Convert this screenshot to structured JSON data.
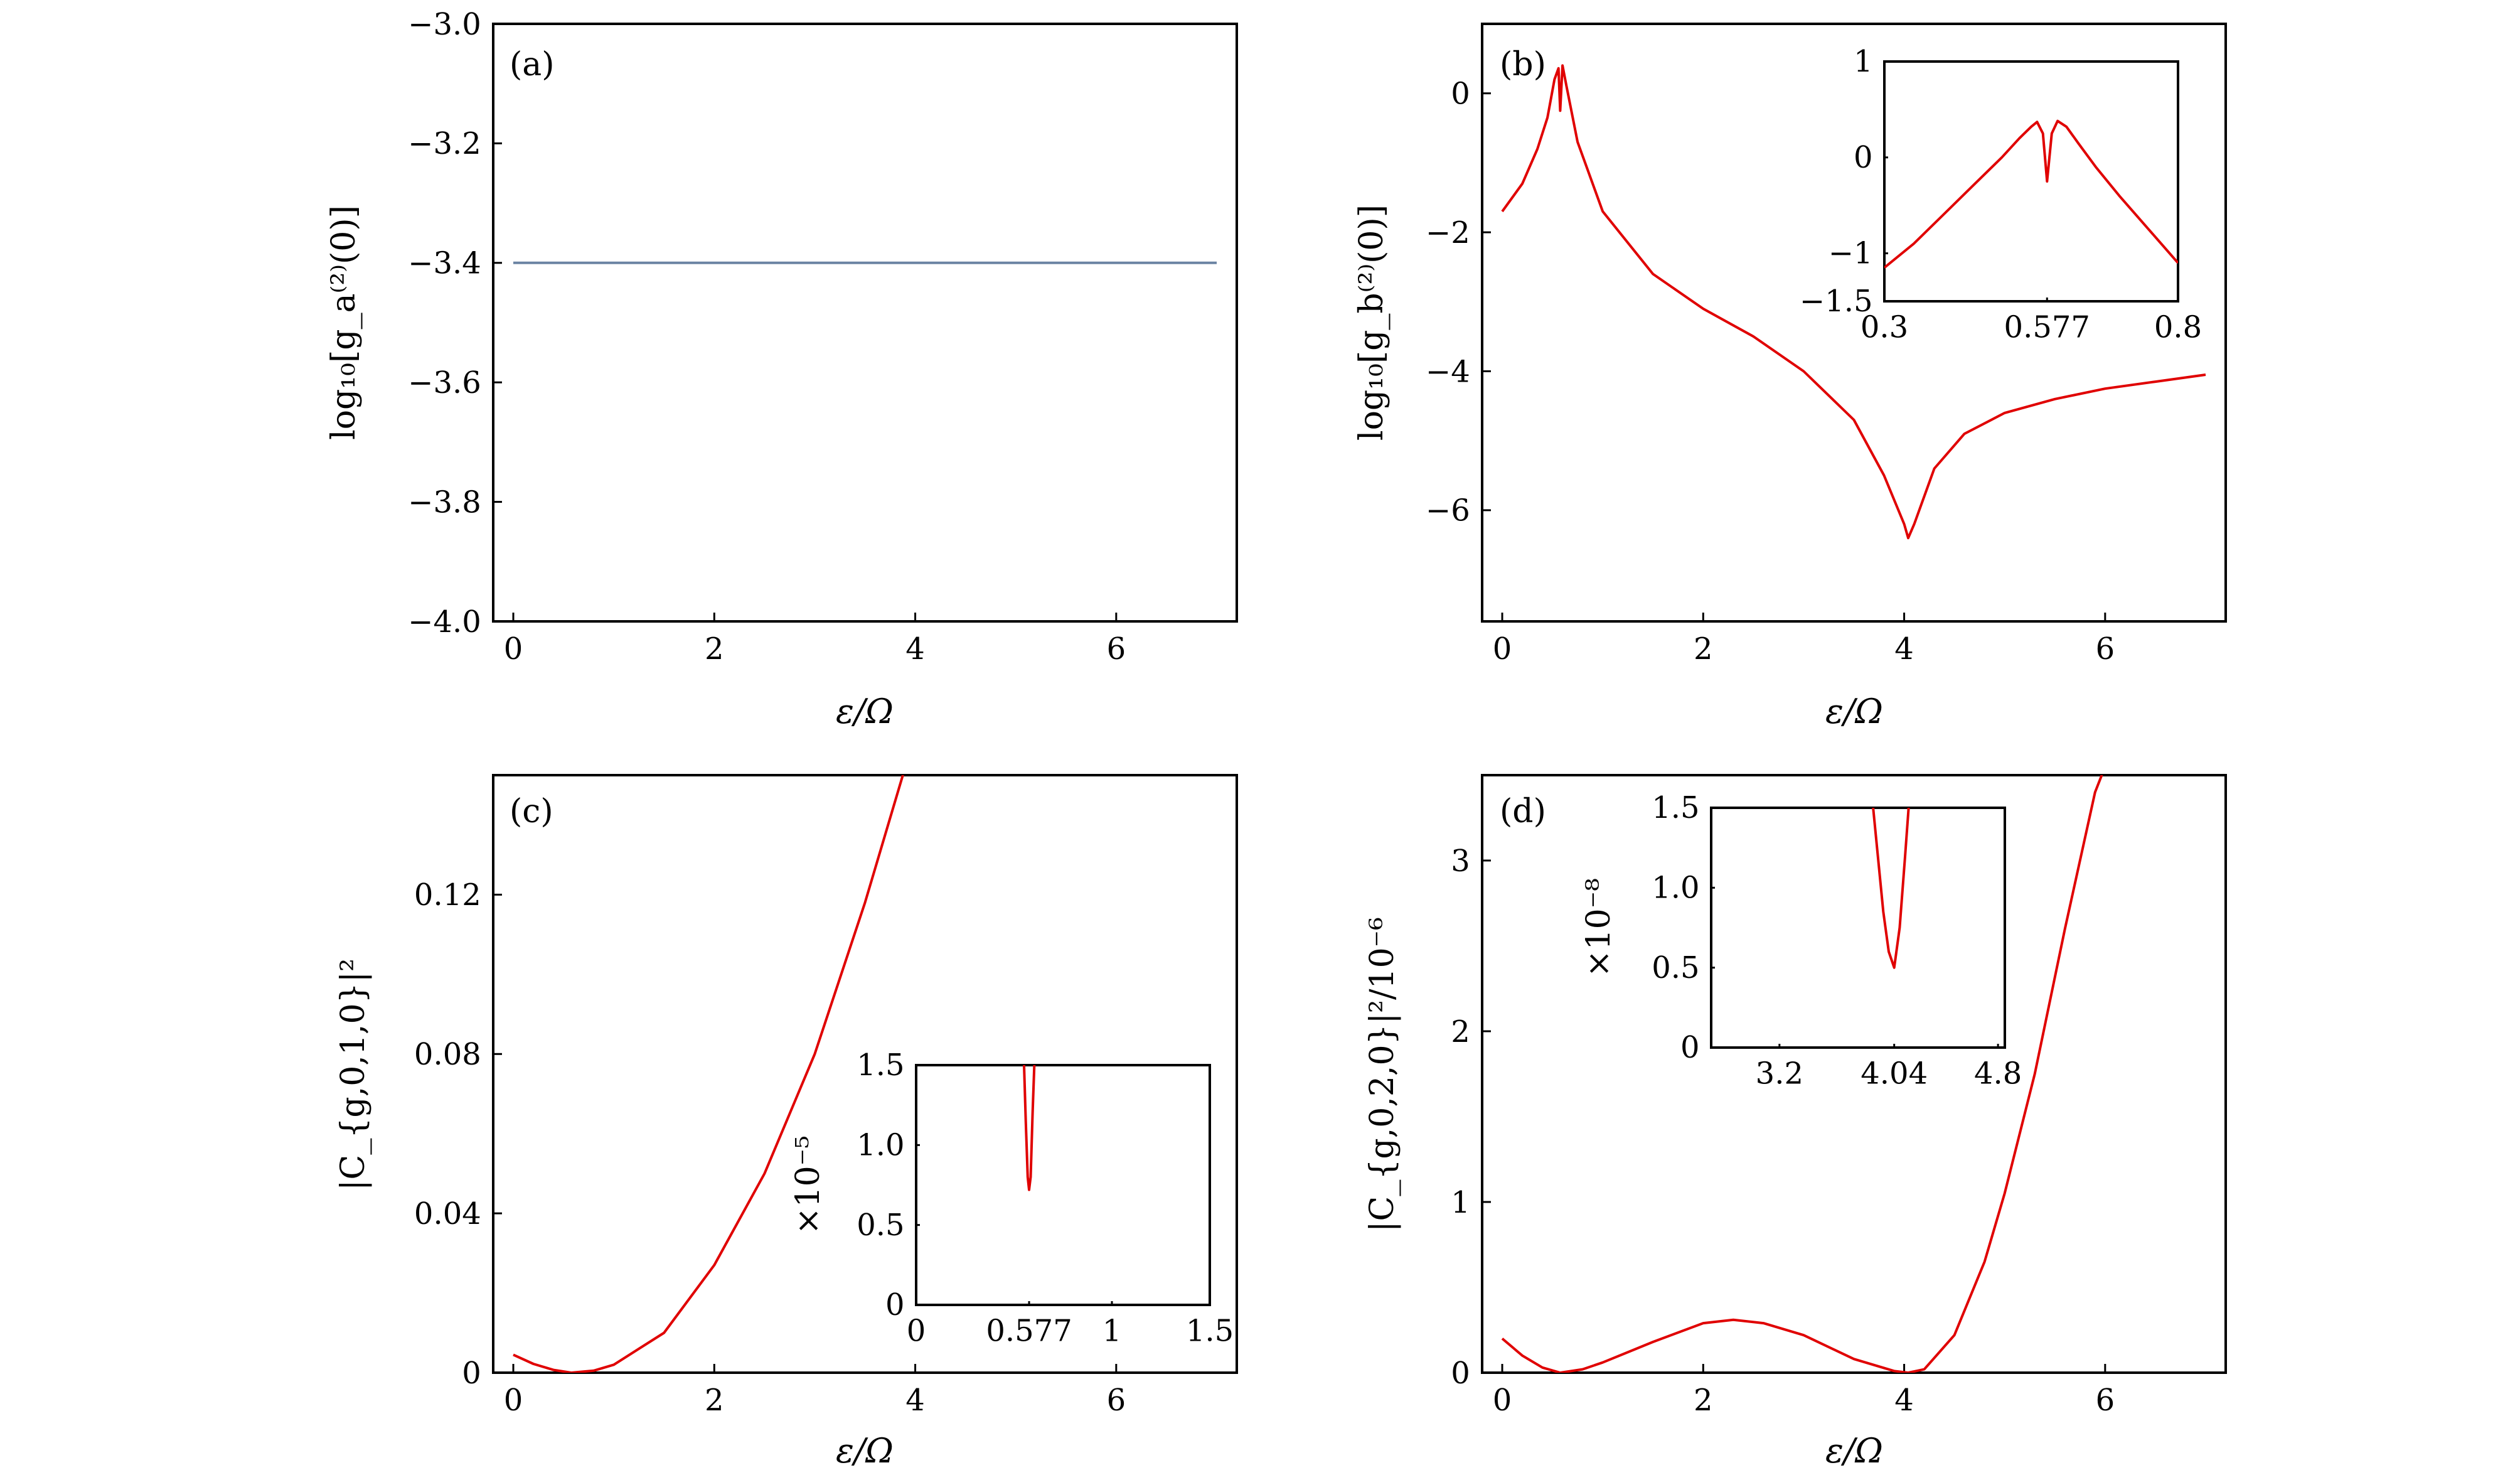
{
  "chart_data": [
    {
      "type": "line",
      "panel_label": "(a)",
      "xlabel": "ε/Ω",
      "ylabel": "log₁₀[g_a⁽²⁾(0)]",
      "xlim": [
        -0.2,
        7.2
      ],
      "ylim": [
        -4.0,
        -3.0
      ],
      "xticks": [
        "0",
        "2",
        "4",
        "6"
      ],
      "yticks": [
        "−3.0",
        "−3.2",
        "−3.4",
        "−3.6",
        "−3.8",
        "−4.0"
      ],
      "series": [
        {
          "color": "#6b84a3",
          "x": [
            0,
            7
          ],
          "y": [
            -3.4,
            -3.4
          ]
        }
      ]
    },
    {
      "type": "line",
      "panel_label": "(b)",
      "xlabel": "ε/Ω",
      "ylabel": "log₁₀[g_b⁽²⁾(0)]",
      "xlim": [
        -0.2,
        7.2
      ],
      "ylim": [
        -7.6,
        1.0
      ],
      "xticks": [
        "0",
        "2",
        "4",
        "6"
      ],
      "yticks": [
        "0",
        "−2",
        "−4",
        "−6"
      ],
      "series": [
        {
          "color": "#e00000",
          "x": [
            0,
            0.2,
            0.35,
            0.45,
            0.52,
            0.56,
            0.577,
            0.6,
            0.64,
            0.75,
            1.0,
            1.5,
            2.0,
            2.5,
            3.0,
            3.5,
            3.8,
            4.0,
            4.04,
            4.1,
            4.3,
            4.6,
            5.0,
            5.5,
            6.0,
            6.5,
            7.0
          ],
          "y": [
            -1.7,
            -1.3,
            -0.8,
            -0.35,
            0.2,
            0.36,
            -0.25,
            0.4,
            0.1,
            -0.7,
            -1.7,
            -2.6,
            -3.1,
            -3.5,
            -4.0,
            -4.7,
            -5.5,
            -6.2,
            -6.4,
            -6.2,
            -5.4,
            -4.9,
            -4.6,
            -4.4,
            -4.25,
            -4.15,
            -4.05
          ]
        }
      ],
      "inset": {
        "xlim": [
          0.3,
          0.8
        ],
        "ylim": [
          -1.5,
          1.0
        ],
        "xticks": [
          "0.3",
          "0.577",
          "0.8"
        ],
        "yticks": [
          "1",
          "0",
          "−1",
          "−1.5"
        ],
        "x": [
          0.3,
          0.35,
          0.4,
          0.45,
          0.5,
          0.53,
          0.55,
          0.56,
          0.57,
          0.577,
          0.585,
          0.595,
          0.61,
          0.63,
          0.66,
          0.7,
          0.75,
          0.8
        ],
        "y": [
          -1.15,
          -0.9,
          -0.6,
          -0.3,
          0.0,
          0.2,
          0.32,
          0.37,
          0.25,
          -0.25,
          0.25,
          0.38,
          0.32,
          0.15,
          -0.1,
          -0.4,
          -0.75,
          -1.1
        ]
      }
    },
    {
      "type": "line",
      "panel_label": "(c)",
      "xlabel": "ε/Ω",
      "ylabel": "|C_{g,0,1,0}|²",
      "xlim": [
        -0.2,
        7.2
      ],
      "ylim": [
        0,
        0.15
      ],
      "xticks": [
        "0",
        "2",
        "4",
        "6"
      ],
      "yticks": [
        "0",
        "0.04",
        "0.08",
        "0.12"
      ],
      "series": [
        {
          "color": "#e00000",
          "x": [
            0,
            0.2,
            0.4,
            0.577,
            0.8,
            1.0,
            1.5,
            2.0,
            2.5,
            3.0,
            3.5,
            3.9
          ],
          "y": [
            0.0045,
            0.0022,
            0.0007,
            0.0,
            0.0005,
            0.002,
            0.01,
            0.027,
            0.05,
            0.08,
            0.118,
            0.152
          ]
        }
      ],
      "inset": {
        "ylabel": "×10⁻⁵",
        "xlim": [
          0,
          1.5
        ],
        "ylim": [
          0,
          1.5
        ],
        "xticks": [
          "0",
          "0.577",
          "1",
          "1.5"
        ],
        "yticks": [
          "0",
          "0.5",
          "1.0",
          "1.5"
        ],
        "x": [
          0.55,
          0.56,
          0.57,
          0.577,
          0.585,
          0.595,
          0.605
        ],
        "y": [
          1.55,
          1.15,
          0.8,
          0.72,
          0.8,
          1.2,
          1.55
        ]
      }
    },
    {
      "type": "line",
      "panel_label": "(d)",
      "xlabel": "ε/Ω",
      "ylabel": "|C_{g,0,2,0}|²/10⁻⁶",
      "xlim": [
        -0.2,
        7.2
      ],
      "ylim": [
        0,
        3.5
      ],
      "xticks": [
        "0",
        "2",
        "4",
        "6"
      ],
      "yticks": [
        "0",
        "1",
        "2",
        "3"
      ],
      "series": [
        {
          "color": "#e00000",
          "x": [
            0,
            0.2,
            0.4,
            0.577,
            0.8,
            1.0,
            1.5,
            2.0,
            2.3,
            2.6,
            3.0,
            3.5,
            3.9,
            4.04,
            4.2,
            4.5,
            4.8,
            5.0,
            5.3,
            5.6,
            5.9,
            6.0
          ],
          "y": [
            0.2,
            0.1,
            0.03,
            0.0,
            0.02,
            0.06,
            0.18,
            0.29,
            0.31,
            0.29,
            0.22,
            0.08,
            0.01,
            0.0,
            0.02,
            0.22,
            0.65,
            1.05,
            1.75,
            2.6,
            3.4,
            3.55
          ]
        }
      ],
      "inset": {
        "ylabel": "×10⁻⁸",
        "xlim": [
          2.7,
          4.85
        ],
        "ylim": [
          0,
          1.5
        ],
        "xticks": [
          "3.2",
          "4.04",
          "4.8"
        ],
        "yticks": [
          "0",
          "0.5",
          "1.0",
          "1.5"
        ],
        "x": [
          3.88,
          3.92,
          3.96,
          4.0,
          4.04,
          4.08,
          4.12,
          4.15
        ],
        "y": [
          1.55,
          1.2,
          0.85,
          0.6,
          0.5,
          0.75,
          1.2,
          1.55
        ]
      }
    }
  ]
}
